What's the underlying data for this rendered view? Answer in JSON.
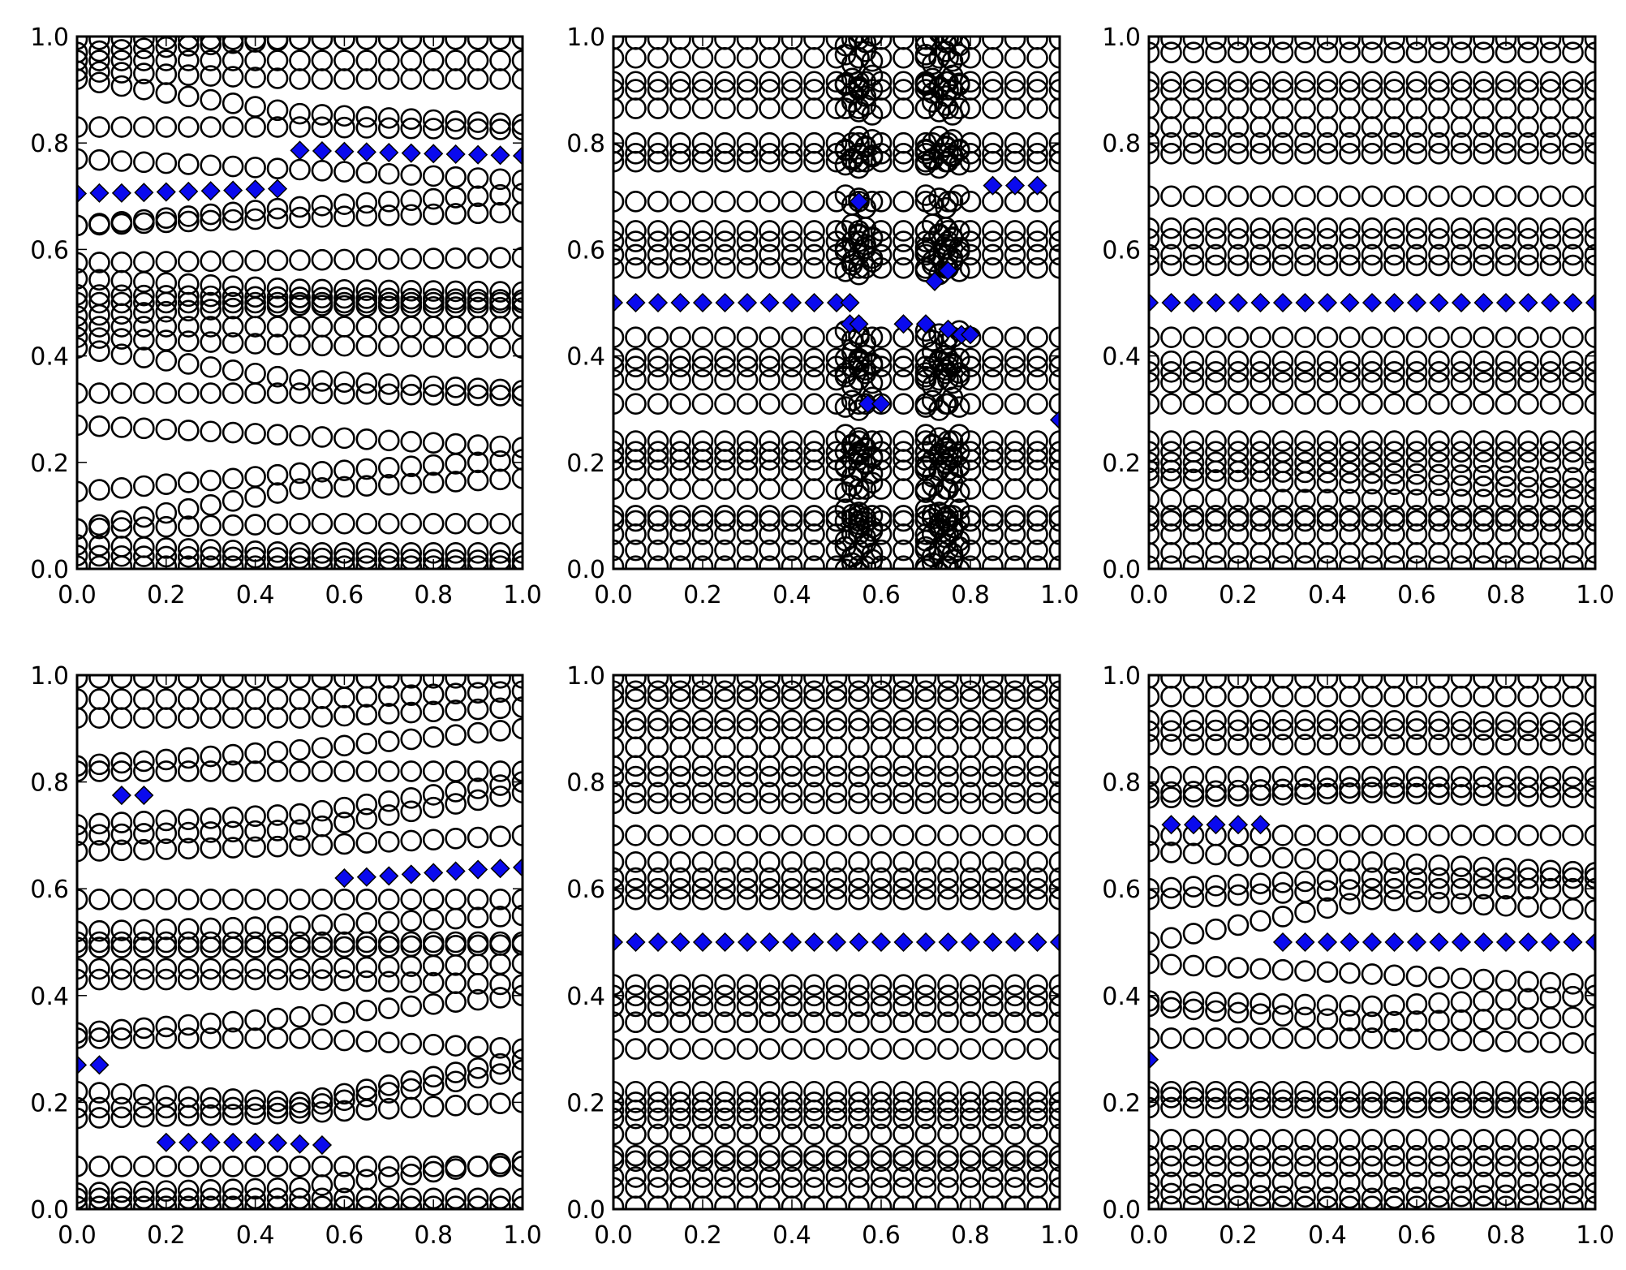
{
  "chart_data": [
    {
      "type": "scatter",
      "title": "",
      "xlabel": "",
      "ylabel": "",
      "xlim": [
        0,
        1
      ],
      "ylim": [
        0,
        1
      ],
      "xticks": [
        "0.0",
        "0.2",
        "0.4",
        "0.6",
        "0.8",
        "1.0"
      ],
      "yticks": [
        "0.0",
        "0.2",
        "0.4",
        "0.6",
        "0.8",
        "1.0"
      ],
      "circle_x_step": 0.05,
      "circle_tracks_y_at_x0_x05_x1": [
        [
          0.995,
          0.995,
          0.995
        ],
        [
          0.97,
          0.995,
          0.995
        ],
        [
          0.955,
          0.955,
          0.955
        ],
        [
          0.935,
          0.92,
          0.92
        ],
        [
          0.92,
          0.855,
          0.835
        ],
        [
          0.83,
          0.83,
          0.825
        ],
        [
          0.77,
          0.75,
          0.73
        ],
        [
          0.645,
          0.68,
          0.705
        ],
        [
          0.645,
          0.66,
          0.67
        ],
        [
          0.575,
          0.58,
          0.585
        ],
        [
          0.545,
          0.525,
          0.52
        ],
        [
          0.515,
          0.51,
          0.505
        ],
        [
          0.5,
          0.5,
          0.5
        ],
        [
          0.475,
          0.495,
          0.49
        ],
        [
          0.455,
          0.455,
          0.455
        ],
        [
          0.435,
          0.42,
          0.415
        ],
        [
          0.415,
          0.355,
          0.335
        ],
        [
          0.33,
          0.33,
          0.325
        ],
        [
          0.27,
          0.25,
          0.228
        ],
        [
          0.145,
          0.18,
          0.205
        ],
        [
          0.075,
          0.15,
          0.17
        ],
        [
          0.075,
          0.085,
          0.085
        ],
        [
          0.045,
          0.03,
          0.03
        ],
        [
          0.025,
          0.02,
          0.015
        ],
        [
          0.005,
          0.005,
          0.005
        ]
      ],
      "cluster_x": [],
      "diamonds": [
        [
          0,
          0.705
        ],
        [
          0.05,
          0.706
        ],
        [
          0.1,
          0.706
        ],
        [
          0.15,
          0.707
        ],
        [
          0.2,
          0.708
        ],
        [
          0.25,
          0.709
        ],
        [
          0.3,
          0.71
        ],
        [
          0.35,
          0.711
        ],
        [
          0.4,
          0.713
        ],
        [
          0.45,
          0.714
        ],
        [
          0.5,
          0.786
        ],
        [
          0.55,
          0.785
        ],
        [
          0.6,
          0.784
        ],
        [
          0.65,
          0.783
        ],
        [
          0.7,
          0.782
        ],
        [
          0.75,
          0.781
        ],
        [
          0.8,
          0.78
        ],
        [
          0.85,
          0.779
        ],
        [
          0.9,
          0.778
        ],
        [
          0.95,
          0.777
        ],
        [
          1.0,
          0.776
        ]
      ]
    },
    {
      "type": "scatter",
      "title": "",
      "xlabel": "",
      "ylabel": "",
      "xlim": [
        0,
        1
      ],
      "ylim": [
        0,
        1
      ],
      "xticks": [
        "0.0",
        "0.2",
        "0.4",
        "0.6",
        "0.8",
        "1.0"
      ],
      "yticks": [
        "0.0",
        "0.2",
        "0.4",
        "0.6",
        "0.8",
        "1.0"
      ],
      "circle_x_step": 0.05,
      "circle_tracks_y_at_x0_x05_x1": [
        [
          0.995
        ],
        [
          0.96
        ],
        [
          0.915
        ],
        [
          0.9
        ],
        [
          0.865
        ],
        [
          0.8
        ],
        [
          0.78
        ],
        [
          0.765
        ],
        [
          0.69
        ],
        [
          0.635
        ],
        [
          0.615
        ],
        [
          0.59
        ],
        [
          0.565
        ],
        [
          0.435
        ],
        [
          0.395
        ],
        [
          0.38
        ],
        [
          0.355
        ],
        [
          0.31
        ],
        [
          0.24
        ],
        [
          0.22
        ],
        [
          0.205
        ],
        [
          0.185
        ],
        [
          0.15
        ],
        [
          0.1
        ],
        [
          0.09
        ],
        [
          0.065
        ],
        [
          0.035
        ],
        [
          0.005
        ]
      ],
      "cluster_x": [
        0.52,
        0.535,
        0.55,
        0.565,
        0.58,
        0.7,
        0.715,
        0.73,
        0.745,
        0.76,
        0.775
      ],
      "diamonds": [
        [
          0,
          0.5
        ],
        [
          0.05,
          0.5
        ],
        [
          0.1,
          0.5
        ],
        [
          0.15,
          0.5
        ],
        [
          0.2,
          0.5
        ],
        [
          0.25,
          0.5
        ],
        [
          0.3,
          0.5
        ],
        [
          0.35,
          0.5
        ],
        [
          0.4,
          0.5
        ],
        [
          0.45,
          0.5
        ],
        [
          0.5,
          0.5
        ],
        [
          0.53,
          0.5
        ],
        [
          0.55,
          0.69
        ],
        [
          0.53,
          0.46
        ],
        [
          0.55,
          0.46
        ],
        [
          0.57,
          0.31
        ],
        [
          0.6,
          0.31
        ],
        [
          0.65,
          0.46
        ],
        [
          0.7,
          0.46
        ],
        [
          0.72,
          0.54
        ],
        [
          0.75,
          0.56
        ],
        [
          0.75,
          0.45
        ],
        [
          0.78,
          0.44
        ],
        [
          0.8,
          0.44
        ],
        [
          0.85,
          0.72
        ],
        [
          0.9,
          0.72
        ],
        [
          0.95,
          0.72
        ],
        [
          1.0,
          0.28
        ]
      ]
    },
    {
      "type": "scatter",
      "title": "",
      "xlabel": "",
      "ylabel": "",
      "xlim": [
        0,
        1
      ],
      "ylim": [
        0,
        1
      ],
      "xticks": [
        "0.0",
        "0.2",
        "0.4",
        "0.6",
        "0.8",
        "1.0"
      ],
      "yticks": [
        "0.0",
        "0.2",
        "0.4",
        "0.6",
        "0.8",
        "1.0"
      ],
      "circle_x_step": 0.05,
      "circle_tracks_y_at_x0_x05_x1": [
        [
          0.995
        ],
        [
          0.97
        ],
        [
          0.915
        ],
        [
          0.9
        ],
        [
          0.865
        ],
        [
          0.83
        ],
        [
          0.8
        ],
        [
          0.78
        ],
        [
          0.7
        ],
        [
          0.64
        ],
        [
          0.62
        ],
        [
          0.59
        ],
        [
          0.57
        ],
        [
          0.435
        ],
        [
          0.39
        ],
        [
          0.37
        ],
        [
          0.35
        ],
        [
          0.31
        ],
        [
          0.24
        ],
        [
          0.22
        ],
        [
          0.2
        ],
        [
          0.185,
          0.18,
          0.17
        ],
        [
          0.17,
          0.16,
          0.15
        ],
        [
          0.13
        ],
        [
          0.1
        ],
        [
          0.09
        ],
        [
          0.065
        ],
        [
          0.03
        ],
        [
          0.005
        ]
      ],
      "cluster_x": [],
      "diamonds": [
        [
          0,
          0.5
        ],
        [
          0.05,
          0.5
        ],
        [
          0.1,
          0.5
        ],
        [
          0.15,
          0.5
        ],
        [
          0.2,
          0.5
        ],
        [
          0.25,
          0.5
        ],
        [
          0.3,
          0.5
        ],
        [
          0.35,
          0.5
        ],
        [
          0.4,
          0.5
        ],
        [
          0.45,
          0.5
        ],
        [
          0.5,
          0.5
        ],
        [
          0.55,
          0.5
        ],
        [
          0.6,
          0.5
        ],
        [
          0.65,
          0.5
        ],
        [
          0.7,
          0.5
        ],
        [
          0.75,
          0.5
        ],
        [
          0.8,
          0.5
        ],
        [
          0.85,
          0.5
        ],
        [
          0.9,
          0.5
        ],
        [
          0.95,
          0.5
        ],
        [
          1.0,
          0.5
        ]
      ]
    },
    {
      "type": "scatter",
      "title": "",
      "xlabel": "",
      "ylabel": "",
      "xlim": [
        0,
        1
      ],
      "ylim": [
        0,
        1
      ],
      "xticks": [
        "0.0",
        "0.2",
        "0.4",
        "0.6",
        "0.8",
        "1.0"
      ],
      "yticks": [
        "0.0",
        "0.2",
        "0.4",
        "0.6",
        "0.8",
        "1.0"
      ],
      "circle_x_step": 0.05,
      "circle_tracks_y_at_x0_x05_x1": [
        [
          0.995
        ],
        [
          0.955,
          0.955,
          0.97
        ],
        [
          0.92,
          0.92,
          0.94
        ],
        [
          0.83,
          0.86,
          0.9
        ],
        [
          0.82
        ],
        [
          0.72,
          0.74,
          0.8
        ],
        [
          0.7,
          0.71,
          0.78
        ],
        [
          0.67,
          0.68,
          0.7
        ],
        [
          0.58
        ],
        [
          0.52,
          0.53,
          0.55
        ],
        [
          0.5
        ],
        [
          0.49,
          0.49,
          0.495
        ],
        [
          0.45,
          0.45,
          0.46
        ],
        [
          0.43,
          0.43,
          0.42
        ],
        [
          0.33,
          0.36,
          0.4
        ],
        [
          0.32,
          0.32,
          0.3
        ],
        [
          0.22,
          0.2,
          0.28
        ],
        [
          0.19,
          0.19,
          0.26
        ],
        [
          0.17,
          0.18,
          0.2
        ],
        [
          0.08
        ],
        [
          0.03,
          0.04,
          0.09
        ],
        [
          0.02
        ],
        [
          0.005
        ]
      ],
      "cluster_x": [],
      "diamonds": [
        [
          0.1,
          0.775
        ],
        [
          0.15,
          0.775
        ],
        [
          0,
          0.27
        ],
        [
          0.05,
          0.27
        ],
        [
          0.2,
          0.125
        ],
        [
          0.25,
          0.125
        ],
        [
          0.3,
          0.125
        ],
        [
          0.35,
          0.125
        ],
        [
          0.4,
          0.125
        ],
        [
          0.45,
          0.124
        ],
        [
          0.5,
          0.122
        ],
        [
          0.55,
          0.12
        ],
        [
          0.6,
          0.62
        ],
        [
          0.65,
          0.622
        ],
        [
          0.7,
          0.624
        ],
        [
          0.75,
          0.627
        ],
        [
          0.8,
          0.63
        ],
        [
          0.85,
          0.633
        ],
        [
          0.9,
          0.636
        ],
        [
          0.95,
          0.638
        ],
        [
          1.0,
          0.64
        ]
      ]
    },
    {
      "type": "scatter",
      "title": "",
      "xlabel": "",
      "ylabel": "",
      "xlim": [
        0,
        1
      ],
      "ylim": [
        0,
        1
      ],
      "xticks": [
        "0.0",
        "0.2",
        "0.4",
        "0.6",
        "0.8",
        "1.0"
      ],
      "yticks": [
        "0.0",
        "0.2",
        "0.4",
        "0.6",
        "0.8",
        "1.0"
      ],
      "circle_x_step": 0.05,
      "circle_tracks_y_at_x0_x05_x1": [
        [
          0.995
        ],
        [
          0.97
        ],
        [
          0.955
        ],
        [
          0.915
        ],
        [
          0.9
        ],
        [
          0.865
        ],
        [
          0.83
        ],
        [
          0.81
        ],
        [
          0.78
        ],
        [
          0.76
        ],
        [
          0.7
        ],
        [
          0.65
        ],
        [
          0.62
        ],
        [
          0.6
        ],
        [
          0.58
        ],
        [
          0.42
        ],
        [
          0.4
        ],
        [
          0.38
        ],
        [
          0.35
        ],
        [
          0.3
        ],
        [
          0.22
        ],
        [
          0.2
        ],
        [
          0.185
        ],
        [
          0.17
        ],
        [
          0.14
        ],
        [
          0.1
        ],
        [
          0.09
        ],
        [
          0.06
        ],
        [
          0.04
        ],
        [
          0.005
        ]
      ],
      "cluster_x": [],
      "diamonds": [
        [
          0,
          0.5
        ],
        [
          0.05,
          0.5
        ],
        [
          0.1,
          0.5
        ],
        [
          0.15,
          0.5
        ],
        [
          0.2,
          0.5
        ],
        [
          0.25,
          0.5
        ],
        [
          0.3,
          0.5
        ],
        [
          0.35,
          0.5
        ],
        [
          0.4,
          0.5
        ],
        [
          0.45,
          0.5
        ],
        [
          0.5,
          0.5
        ],
        [
          0.55,
          0.5
        ],
        [
          0.6,
          0.5
        ],
        [
          0.65,
          0.5
        ],
        [
          0.7,
          0.5
        ],
        [
          0.75,
          0.5
        ],
        [
          0.8,
          0.5
        ],
        [
          0.85,
          0.5
        ],
        [
          0.9,
          0.5
        ],
        [
          0.95,
          0.5
        ],
        [
          1.0,
          0.5
        ]
      ]
    },
    {
      "type": "scatter",
      "title": "",
      "xlabel": "",
      "ylabel": "",
      "xlim": [
        0,
        1
      ],
      "ylim": [
        0,
        1
      ],
      "xticks": [
        "0.0",
        "0.2",
        "0.4",
        "0.6",
        "0.8",
        "1.0"
      ],
      "yticks": [
        "0.0",
        "0.2",
        "0.4",
        "0.6",
        "0.8",
        "1.0"
      ],
      "circle_x_step": 0.05,
      "circle_tracks_y_at_x0_x05_x1": [
        [
          0.995
        ],
        [
          0.96
        ],
        [
          0.915,
          0.915,
          0.91
        ],
        [
          0.895,
          0.9,
          0.895
        ],
        [
          0.87
        ],
        [
          0.81
        ],
        [
          0.78,
          0.79,
          0.79
        ],
        [
          0.77,
          0.78,
          0.77
        ],
        [
          0.7
        ],
        [
          0.67,
          0.65,
          0.63
        ],
        [
          0.6,
          0.62,
          0.62
        ],
        [
          0.58,
          0.6,
          0.6
        ],
        [
          0.5,
          0.58,
          0.56
        ],
        [
          0.46,
          0.44,
          0.42
        ],
        [
          0.39,
          0.38,
          0.4
        ],
        [
          0.38,
          0.35,
          0.36
        ],
        [
          0.32,
          0.32,
          0.31
        ],
        [
          0.22
        ],
        [
          0.21,
          0.2,
          0.2
        ],
        [
          0.19
        ],
        [
          0.13
        ],
        [
          0.1
        ],
        [
          0.08
        ],
        [
          0.05
        ],
        [
          0.03,
          0.02,
          0.03
        ],
        [
          0.005
        ]
      ],
      "cluster_x": [],
      "diamonds": [
        [
          0.05,
          0.72
        ],
        [
          0.1,
          0.72
        ],
        [
          0.15,
          0.72
        ],
        [
          0.2,
          0.72
        ],
        [
          0.25,
          0.72
        ],
        [
          0,
          0.28
        ],
        [
          0.3,
          0.5
        ],
        [
          0.35,
          0.5
        ],
        [
          0.4,
          0.5
        ],
        [
          0.45,
          0.5
        ],
        [
          0.5,
          0.5
        ],
        [
          0.55,
          0.5
        ],
        [
          0.6,
          0.5
        ],
        [
          0.65,
          0.5
        ],
        [
          0.7,
          0.5
        ],
        [
          0.75,
          0.5
        ],
        [
          0.8,
          0.5
        ],
        [
          0.85,
          0.5
        ],
        [
          0.9,
          0.5
        ],
        [
          0.95,
          0.5
        ],
        [
          1.0,
          0.5
        ]
      ]
    }
  ],
  "colors": {
    "diamond_fill": "#0a0aee",
    "marker_edge": "#000000",
    "axes": "#000000"
  }
}
